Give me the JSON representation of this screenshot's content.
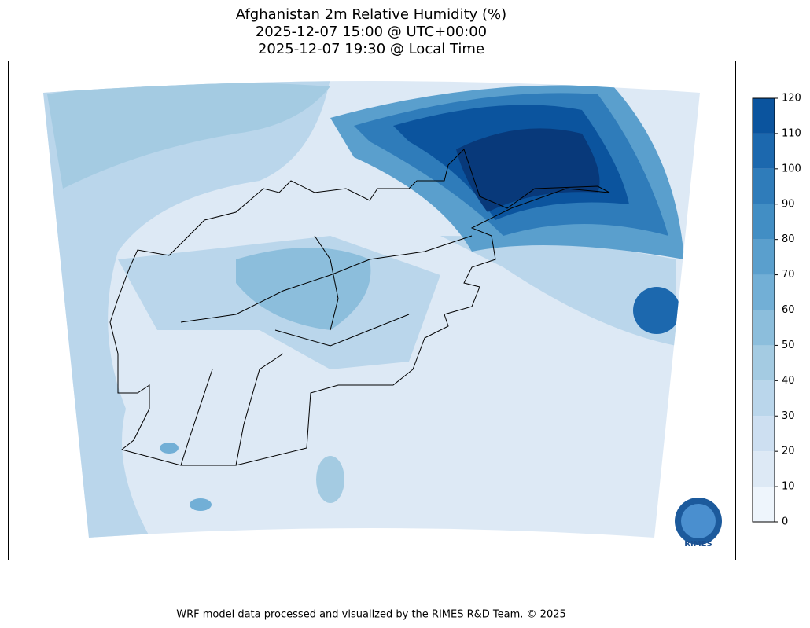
{
  "title": [
    "Afghanistan 2m Relative Humidity (%)",
    "2025-12-07 15:00 @ UTC+00:00",
    "2025-12-07 19:30 @ Local Time"
  ],
  "colorbar": {
    "ticks": [
      0,
      10,
      20,
      30,
      40,
      50,
      60,
      70,
      80,
      90,
      100,
      110,
      120
    ],
    "colors": [
      "#eef5fc",
      "#dde9f5",
      "#cddff1",
      "#bad6eb",
      "#a4cbe2",
      "#8cbedc",
      "#72afd6",
      "#5a9fcd",
      "#428ec4",
      "#2f7cba",
      "#1c68ae",
      "#0b549e",
      "#08397a"
    ]
  },
  "logo_text": "RIMES",
  "footer": "WRF model data processed and visualized by the RIMES R&D Team. © 2025"
}
